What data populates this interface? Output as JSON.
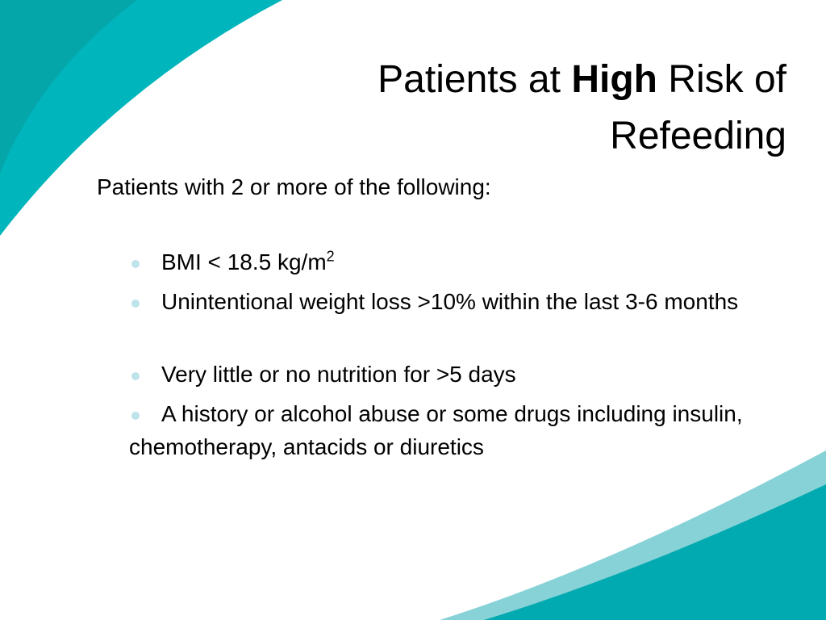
{
  "title": {
    "before": "Patients at",
    "bold": "High",
    "after": "Risk of",
    "line2": "Refeeding"
  },
  "intro": "Patients with 2 or more of the following:",
  "bullets": [
    {
      "text": "BMI < 18.5 kg/m",
      "superscript": "2"
    },
    {
      "text": "Unintentional weight loss >10% within the last 3-6 months"
    },
    {
      "text": "Very little or no nutrition for >5 days"
    },
    {
      "text": "A history or alcohol abuse or some drugs including insulin, chemotherapy, antacids or diuretics"
    }
  ]
}
